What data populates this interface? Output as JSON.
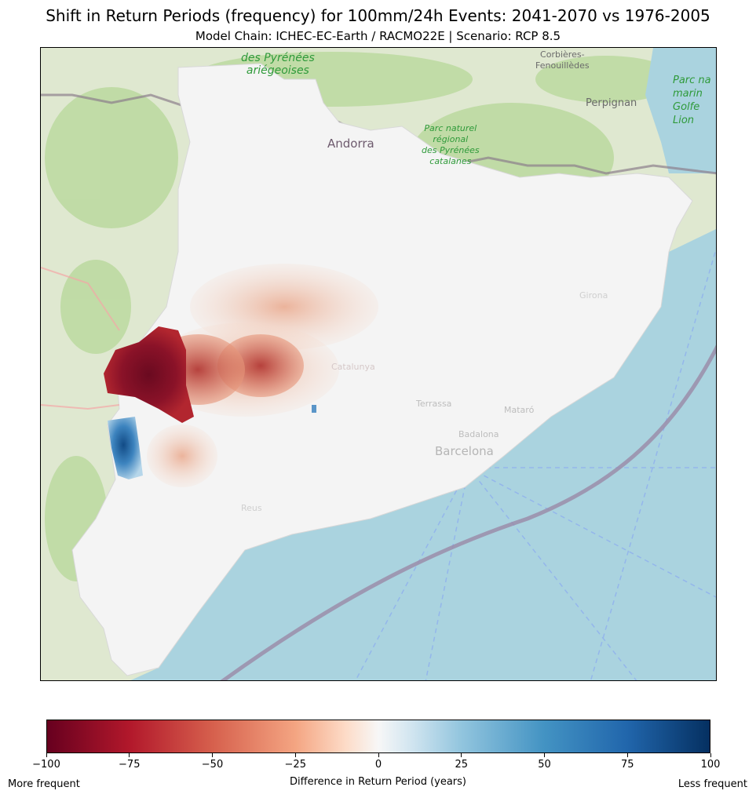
{
  "title": "Shift in Return Periods (frequency) for 100mm/24h Events: 2041-2070 vs 1976-2005",
  "subtitle": "Model Chain: ICHEC-EC-Earth / RACMO22E  | Scenario: RCP 8.5",
  "map": {
    "basemap_labels": {
      "pyrenees_ariegeoises": "des Pyrénées\nariégeoises",
      "corbieres": "Corbières-\nFenouillèdes",
      "perpignan": "Perpignan",
      "andorra": "Andorra",
      "parc_pyrenees_catalanes": "Parc naturel\nrégional\ndes Pyrénées\ncatalanes",
      "parc_marin": "Parc na\nmarin\nGolfe\nLion",
      "girona": "Girona",
      "catalunya": "Catalunya",
      "terrassa": "Terrassa",
      "mataro": "Mataró",
      "badalona": "Badalona",
      "barcelona": "Barcelona",
      "reus": "Reus"
    },
    "colors": {
      "sea": "#aad3df",
      "land_outside": "#dfe8d0",
      "catalonia_overlay": "#f4f4f4",
      "strong_increase": "#7a0a22",
      "strong_decrease": "#1a5a9a"
    }
  },
  "colorbar": {
    "label": "Difference in Return Period (years)",
    "min": -100,
    "max": 100,
    "cmap": "RdBu",
    "ticks": [
      "−100",
      "−75",
      "−50",
      "−25",
      "0",
      "25",
      "50",
      "75",
      "100"
    ],
    "left_note": "More frequent",
    "right_note": "Less frequent"
  }
}
